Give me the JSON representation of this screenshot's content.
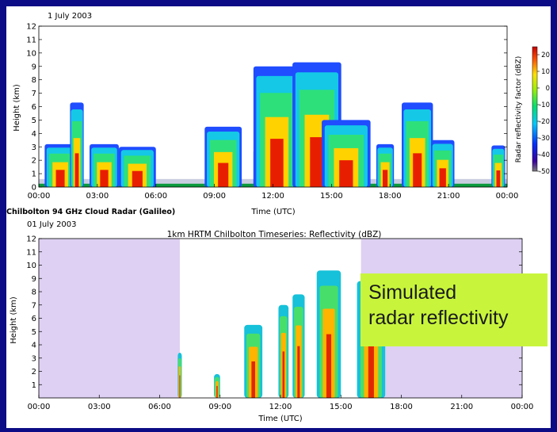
{
  "colors": {
    "background": "#0c0c86",
    "night_shading": "#ddd0f2",
    "callout_bg": "#c8f53c"
  },
  "chart_data": [
    {
      "type": "heatmap",
      "date_label": "1 July 2003",
      "instrument_label": "Chilbolton 94 GHz Cloud Radar (Galileo)",
      "xlabel": "Time (UTC)",
      "ylabel": "Height (km)",
      "x_ticks": [
        "00:00",
        "03:00",
        "06:00",
        "09:00",
        "12:00",
        "15:00",
        "18:00",
        "21:00",
        "00:00"
      ],
      "y_ticks": [
        "0",
        "1",
        "2",
        "3",
        "4",
        "5",
        "6",
        "7",
        "8",
        "9",
        "10",
        "11",
        "12"
      ],
      "xlim": [
        0,
        24
      ],
      "ylim": [
        0,
        12
      ],
      "colorbar": {
        "label": "Radar reflectivity factor (dBZ)",
        "ticks": [
          "20",
          "10",
          "0",
          "-10",
          "-20",
          "-30",
          "-40",
          "-50"
        ],
        "range": [
          -50,
          20
        ]
      },
      "cloud_features": [
        {
          "t0": 0.3,
          "t1": 1.9,
          "top": 3.2
        },
        {
          "t0": 1.6,
          "t1": 2.3,
          "top": 6.3
        },
        {
          "t0": 2.6,
          "t1": 4.1,
          "top": 3.2
        },
        {
          "t0": 4.1,
          "t1": 6.0,
          "top": 3.0
        },
        {
          "t0": 8.5,
          "t1": 10.4,
          "top": 4.5
        },
        {
          "t0": 11.0,
          "t1": 12.1,
          "top": 2.8
        },
        {
          "t0": 11.0,
          "t1": 13.4,
          "top": 9.0
        },
        {
          "t0": 13.0,
          "t1": 15.5,
          "top": 9.3
        },
        {
          "t0": 14.5,
          "t1": 17.0,
          "top": 5.0
        },
        {
          "t0": 17.3,
          "t1": 18.2,
          "top": 3.2
        },
        {
          "t0": 18.6,
          "t1": 20.2,
          "top": 6.3
        },
        {
          "t0": 20.1,
          "t1": 21.3,
          "top": 3.5
        },
        {
          "t0": 23.2,
          "t1": 23.9,
          "top": 3.1
        }
      ]
    },
    {
      "type": "heatmap",
      "date_label": "01 July 2003",
      "title": "1km HRTM Chilbolton Timeseries: Reflectivity (dBZ)",
      "xlabel": "Time (UTC)",
      "ylabel": "Height (km)",
      "x_ticks": [
        "00:00",
        "03:00",
        "06:00",
        "09:00",
        "12:00",
        "15:00",
        "18:00",
        "21:00",
        "00:00"
      ],
      "y_ticks": [
        "1",
        "2",
        "3",
        "4",
        "5",
        "6",
        "7",
        "8",
        "9",
        "10",
        "11",
        "12"
      ],
      "xlim": [
        0,
        24
      ],
      "ylim": [
        0,
        12
      ],
      "shaded_periods": [
        [
          0,
          7.0
        ],
        [
          16.0,
          24
        ]
      ],
      "cloud_features": [
        {
          "t0": 6.9,
          "t1": 7.1,
          "top": 3.4
        },
        {
          "t0": 8.7,
          "t1": 9.0,
          "top": 1.8
        },
        {
          "t0": 10.2,
          "t1": 11.1,
          "top": 5.5
        },
        {
          "t0": 11.9,
          "t1": 12.4,
          "top": 7.0
        },
        {
          "t0": 12.6,
          "t1": 13.2,
          "top": 7.8
        },
        {
          "t0": 13.8,
          "t1": 15.0,
          "top": 9.6
        },
        {
          "t0": 15.8,
          "t1": 17.2,
          "top": 8.8
        }
      ]
    }
  ],
  "callout": {
    "line1": "Simulated",
    "line2": "radar reflectivity"
  }
}
